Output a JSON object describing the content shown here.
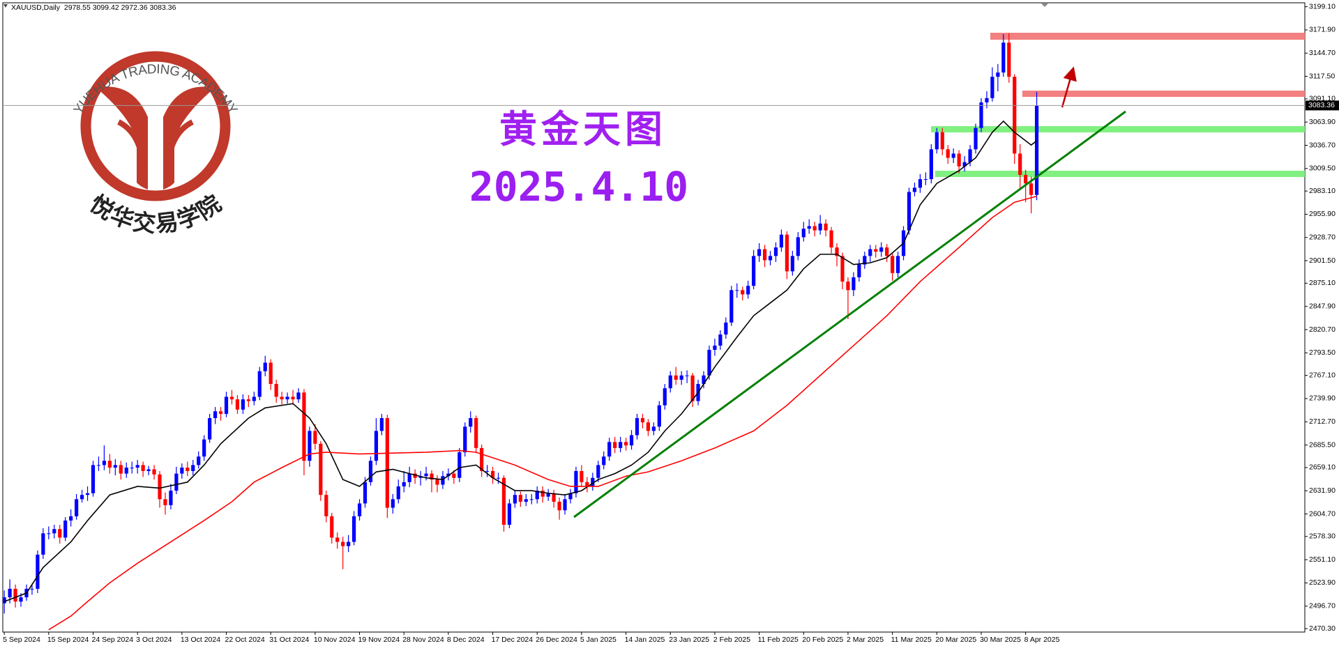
{
  "chart_data": {
    "type": "candlestick",
    "header": "XAUUSD,Daily  2978.55 3099.42 2972.36 3083.36",
    "title": "黄金天图",
    "subtitle": "2025.4.10",
    "logo_text": "YUEHUA TRADING ACADEMY",
    "logo_name": "悦华交易学院",
    "up_color": "#0000ff",
    "down_color": "#ff0000",
    "open": [
      2500,
      2507,
      2517,
      2502,
      2507,
      2517,
      2517,
      2557,
      2582,
      2582,
      2587,
      2577,
      2597,
      2602,
      2622,
      2627,
      2629,
      2662,
      2662,
      2667,
      2659,
      2662,
      2652,
      2659,
      2659,
      2662,
      2655,
      2657,
      2651,
      2622,
      2615,
      2632,
      2652,
      2659,
      2655,
      2662,
      2672,
      2692,
      2717,
      2725,
      2722,
      2742,
      2739,
      2727,
      2739,
      2737,
      2742,
      2772,
      2782,
      2757,
      2742,
      2739,
      2742,
      2739,
      2747,
      2667,
      2702,
      2687,
      2627,
      2602,
      2577,
      2572,
      2567,
      2572,
      2602,
      2617,
      2642,
      2667,
      2702,
      2717,
      2612,
      2622,
      2637,
      2642,
      2652,
      2647,
      2649,
      2652,
      2645,
      2639,
      2649,
      2652,
      2647,
      2677,
      2707,
      2717,
      2682,
      2655,
      2655,
      2647,
      2647,
      2592,
      2617,
      2627,
      2619,
      2622,
      2622,
      2632,
      2625,
      2629,
      2619,
      2609,
      2622,
      2629,
      2655,
      2642,
      2637,
      2647,
      2662,
      2672,
      2689,
      2682,
      2689,
      2685,
      2697,
      2717,
      2712,
      2702,
      2707,
      2732,
      2752,
      2767,
      2762,
      2767,
      2767,
      2737,
      2757,
      2767,
      2797,
      2802,
      2815,
      2829,
      2867,
      2867,
      2862,
      2872,
      2907,
      2915,
      2902,
      2907,
      2917,
      2932,
      2889,
      2907,
      2929,
      2939,
      2942,
      2937,
      2945,
      2937,
      2917,
      2907,
      2877,
      2867,
      2882,
      2897,
      2907,
      2915,
      2912,
      2917,
      2907,
      2887,
      2907,
      2937,
      2982,
      2987,
      2997,
      2997,
      3032,
      3052,
      3032,
      3022,
      3027,
      3012,
      3017,
      3032,
      3057,
      3087,
      3092,
      3117,
      3122,
      3157,
      3117,
      3027,
      3002,
      2992,
      2978.55
    ],
    "high": [
      2515,
      2528,
      2522,
      2512,
      2522,
      2523,
      2562,
      2588,
      2590,
      2592,
      2592,
      2601,
      2610,
      2628,
      2633,
      2637,
      2667,
      2672,
      2685,
      2675,
      2669,
      2667,
      2665,
      2666,
      2668,
      2666,
      2661,
      2662,
      2655,
      2630,
      2640,
      2660,
      2664,
      2666,
      2668,
      2678,
      2697,
      2722,
      2730,
      2730,
      2748,
      2750,
      2744,
      2745,
      2744,
      2748,
      2777,
      2790,
      2786,
      2762,
      2748,
      2747,
      2750,
      2752,
      2751,
      2707,
      2710,
      2690,
      2632,
      2606,
      2583,
      2578,
      2580,
      2608,
      2622,
      2648,
      2672,
      2717,
      2722,
      2721,
      2628,
      2645,
      2655,
      2660,
      2657,
      2655,
      2660,
      2656,
      2650,
      2655,
      2658,
      2656,
      2682,
      2712,
      2725,
      2720,
      2686,
      2662,
      2660,
      2653,
      2650,
      2622,
      2633,
      2631,
      2628,
      2628,
      2637,
      2637,
      2634,
      2633,
      2624,
      2628,
      2634,
      2660,
      2662,
      2648,
      2653,
      2667,
      2678,
      2694,
      2695,
      2695,
      2694,
      2703,
      2722,
      2722,
      2716,
      2712,
      2737,
      2757,
      2772,
      2777,
      2772,
      2773,
      2770,
      2762,
      2772,
      2802,
      2810,
      2820,
      2835,
      2872,
      2875,
      2871,
      2878,
      2914,
      2922,
      2920,
      2913,
      2923,
      2938,
      2936,
      2913,
      2935,
      2947,
      2950,
      2947,
      2955,
      2950,
      2941,
      2922,
      2911,
      2882,
      2888,
      2903,
      2912,
      2920,
      2920,
      2923,
      2921,
      2911,
      2912,
      2942,
      2987,
      2993,
      3003,
      3005,
      3038,
      3057,
      3057,
      3037,
      3033,
      3031,
      3024,
      3037,
      3062,
      3092,
      3100,
      3128,
      3132,
      3167,
      3168,
      3120,
      3038,
      3008,
      3000,
      3099.42
    ],
    "low": [
      2488,
      2500,
      2495,
      2496,
      2503,
      2510,
      2512,
      2552,
      2575,
      2576,
      2570,
      2573,
      2590,
      2598,
      2618,
      2620,
      2625,
      2655,
      2656,
      2652,
      2650,
      2645,
      2647,
      2652,
      2652,
      2648,
      2650,
      2645,
      2612,
      2604,
      2610,
      2628,
      2646,
      2649,
      2650,
      2658,
      2667,
      2688,
      2710,
      2714,
      2718,
      2733,
      2722,
      2722,
      2730,
      2732,
      2738,
      2766,
      2750,
      2735,
      2733,
      2734,
      2733,
      2735,
      2650,
      2660,
      2680,
      2620,
      2595,
      2570,
      2564,
      2540,
      2560,
      2568,
      2597,
      2612,
      2638,
      2662,
      2697,
      2600,
      2605,
      2617,
      2630,
      2636,
      2640,
      2638,
      2644,
      2630,
      2630,
      2634,
      2644,
      2640,
      2642,
      2672,
      2700,
      2676,
      2648,
      2648,
      2640,
      2640,
      2584,
      2588,
      2612,
      2613,
      2614,
      2616,
      2617,
      2618,
      2620,
      2612,
      2598,
      2604,
      2617,
      2624,
      2637,
      2630,
      2632,
      2642,
      2657,
      2667,
      2676,
      2677,
      2679,
      2680,
      2692,
      2705,
      2696,
      2697,
      2702,
      2727,
      2747,
      2756,
      2756,
      2758,
      2730,
      2732,
      2752,
      2762,
      2790,
      2797,
      2810,
      2825,
      2858,
      2855,
      2857,
      2868,
      2900,
      2894,
      2896,
      2900,
      2912,
      2880,
      2884,
      2902,
      2924,
      2933,
      2930,
      2932,
      2930,
      2910,
      2895,
      2868,
      2833,
      2860,
      2877,
      2892,
      2900,
      2905,
      2906,
      2900,
      2878,
      2882,
      2902,
      2932,
      2977,
      2981,
      2990,
      2992,
      3027,
      3025,
      3015,
      3016,
      3004,
      3006,
      3012,
      3027,
      3052,
      3080,
      3088,
      3100,
      3117,
      3110,
      3015,
      2985,
      2970,
      2957,
      2972.36
    ],
    "close": [
      2507,
      2517,
      2502,
      2507,
      2517,
      2517,
      2557,
      2582,
      2582,
      2587,
      2577,
      2597,
      2602,
      2622,
      2627,
      2629,
      2662,
      2662,
      2667,
      2659,
      2662,
      2652,
      2659,
      2659,
      2662,
      2655,
      2657,
      2651,
      2622,
      2615,
      2632,
      2652,
      2659,
      2655,
      2662,
      2672,
      2692,
      2717,
      2725,
      2722,
      2742,
      2739,
      2727,
      2739,
      2737,
      2742,
      2772,
      2782,
      2757,
      2742,
      2739,
      2742,
      2739,
      2747,
      2667,
      2702,
      2687,
      2627,
      2602,
      2577,
      2572,
      2567,
      2572,
      2602,
      2617,
      2642,
      2667,
      2702,
      2717,
      2612,
      2622,
      2637,
      2642,
      2652,
      2647,
      2649,
      2652,
      2645,
      2639,
      2649,
      2652,
      2647,
      2677,
      2707,
      2717,
      2682,
      2655,
      2655,
      2647,
      2647,
      2592,
      2617,
      2627,
      2619,
      2622,
      2622,
      2632,
      2625,
      2629,
      2619,
      2609,
      2622,
      2629,
      2655,
      2642,
      2637,
      2647,
      2662,
      2672,
      2689,
      2682,
      2689,
      2685,
      2697,
      2717,
      2712,
      2702,
      2707,
      2732,
      2752,
      2767,
      2762,
      2767,
      2767,
      2737,
      2757,
      2767,
      2797,
      2802,
      2815,
      2829,
      2867,
      2867,
      2862,
      2872,
      2907,
      2915,
      2902,
      2907,
      2917,
      2932,
      2889,
      2907,
      2929,
      2939,
      2942,
      2937,
      2945,
      2937,
      2917,
      2907,
      2877,
      2867,
      2882,
      2897,
      2907,
      2915,
      2912,
      2917,
      2907,
      2887,
      2907,
      2937,
      2982,
      2987,
      2997,
      2997,
      3032,
      3052,
      3032,
      3022,
      3027,
      3012,
      3017,
      3032,
      3057,
      3087,
      3092,
      3117,
      3122,
      3157,
      3117,
      3027,
      3002,
      2992,
      2978.55,
      3083.36
    ],
    "series": [
      {
        "type": "line",
        "color": "#000000",
        "x": [
          0,
          4,
          7,
          12,
          15,
          19,
          24,
          28,
          33,
          36,
          39,
          44,
          47,
          52,
          55,
          58,
          61,
          64,
          67,
          70,
          73,
          76,
          79,
          82,
          85,
          88,
          92,
          95,
          98,
          101,
          104,
          107,
          110,
          113,
          116,
          119,
          122,
          125,
          128,
          132,
          135,
          138,
          141,
          144,
          147,
          150,
          153,
          156,
          159,
          162,
          165,
          168,
          172,
          175,
          178,
          180,
          182,
          185,
          186
        ],
        "values": [
          2502,
          2512,
          2542,
          2572,
          2597,
          2627,
          2637,
          2635,
          2642,
          2662,
          2687,
          2717,
          2729,
          2734,
          2717,
          2687,
          2645,
          2637,
          2654,
          2657,
          2652,
          2647,
          2645,
          2659,
          2662,
          2647,
          2632,
          2632,
          2629,
          2627,
          2632,
          2645,
          2652,
          2662,
          2677,
          2702,
          2722,
          2747,
          2777,
          2812,
          2837,
          2852,
          2867,
          2892,
          2909,
          2909,
          2897,
          2899,
          2905,
          2922,
          2967,
          2992,
          3007,
          3022,
          3052,
          3065,
          3052,
          3037,
          3042
        ]
      },
      {
        "type": "line",
        "color": "#ff0000",
        "x": [
          8,
          12,
          15,
          19,
          24,
          30,
          36,
          41,
          45,
          50,
          55,
          58,
          64,
          70,
          76,
          82,
          85,
          92,
          98,
          102,
          107,
          112,
          116,
          122,
          128,
          135,
          141,
          147,
          153,
          159,
          165,
          172,
          178,
          182,
          186
        ],
        "values": [
          2469,
          2485,
          2502,
          2524,
          2547,
          2572,
          2597,
          2619,
          2642,
          2659,
          2675,
          2677,
          2675,
          2676,
          2677,
          2679,
          2677,
          2662,
          2645,
          2637,
          2637,
          2649,
          2654,
          2667,
          2682,
          2702,
          2732,
          2767,
          2802,
          2837,
          2877,
          2917,
          2952,
          2970,
          2977
        ]
      }
    ],
    "last_price": 3083.36,
    "xlim": [
      -0.27,
      234.3
    ],
    "xticks": [
      {
        "value": 0,
        "label": "5 Sep 2024"
      },
      {
        "value": 8,
        "label": "15 Sep 2024"
      },
      {
        "value": 16,
        "label": "24 Sep 2024"
      },
      {
        "value": 24,
        "label": "3 Oct 2024"
      },
      {
        "value": 32,
        "label": "13 Oct 2024"
      },
      {
        "value": 40,
        "label": "22 Oct 2024"
      },
      {
        "value": 48,
        "label": "31 Oct 2024"
      },
      {
        "value": 56,
        "label": "10 Nov 2024"
      },
      {
        "value": 64,
        "label": "19 Nov 2024"
      },
      {
        "value": 72,
        "label": "28 Nov 2024"
      },
      {
        "value": 80,
        "label": "8 Dec 2024"
      },
      {
        "value": 88,
        "label": "17 Dec 2024"
      },
      {
        "value": 96,
        "label": "26 Dec 2024"
      },
      {
        "value": 104,
        "label": "5 Jan 2025"
      },
      {
        "value": 112,
        "label": "14 Jan 2025"
      },
      {
        "value": 120,
        "label": "23 Jan 2025"
      },
      {
        "value": 128,
        "label": "2 Feb 2025"
      },
      {
        "value": 136,
        "label": "11 Feb 2025"
      },
      {
        "value": 144,
        "label": "20 Feb 2025"
      },
      {
        "value": 152,
        "label": "2 Mar 2025"
      },
      {
        "value": 160,
        "label": "11 Mar 2025"
      },
      {
        "value": 168,
        "label": "20 Mar 2025"
      },
      {
        "value": 176,
        "label": "30 Mar 2025"
      },
      {
        "value": 184,
        "label": "8 Apr 2025"
      }
    ],
    "ylim": [
      2466.3,
      3203.7
    ],
    "yticks": [
      {
        "value": 3199.1,
        "label": "3199.10"
      },
      {
        "value": 3171.9,
        "label": "3171.90"
      },
      {
        "value": 3144.7,
        "label": "3144.70"
      },
      {
        "value": 3117.5,
        "label": "3117.50"
      },
      {
        "value": 3091.1,
        "label": "3091.10"
      },
      {
        "value": 3063.9,
        "label": "3063.90"
      },
      {
        "value": 3036.7,
        "label": "3036.70"
      },
      {
        "value": 3009.5,
        "label": "3009.50"
      },
      {
        "value": 2983.1,
        "label": "2983.10"
      },
      {
        "value": 2955.9,
        "label": "2955.90"
      },
      {
        "value": 2928.7,
        "label": "2928.70"
      },
      {
        "value": 2901.5,
        "label": "2901.50"
      },
      {
        "value": 2875.1,
        "label": "2875.10"
      },
      {
        "value": 2847.9,
        "label": "2847.90"
      },
      {
        "value": 2820.7,
        "label": "2820.70"
      },
      {
        "value": 2793.5,
        "label": "2793.50"
      },
      {
        "value": 2767.1,
        "label": "2767.10"
      },
      {
        "value": 2739.9,
        "label": "2739.90"
      },
      {
        "value": 2712.7,
        "label": "2712.70"
      },
      {
        "value": 2685.5,
        "label": "2685.50"
      },
      {
        "value": 2659.1,
        "label": "2659.10"
      },
      {
        "value": 2631.9,
        "label": "2631.90"
      },
      {
        "value": 2604.7,
        "label": "2604.70"
      },
      {
        "value": 2578.3,
        "label": "2578.30"
      },
      {
        "value": 2551.1,
        "label": "2551.10"
      },
      {
        "value": 2523.9,
        "label": "2523.90"
      },
      {
        "value": 2496.7,
        "label": "2496.70"
      },
      {
        "value": 2470.3,
        "label": "2470.30"
      }
    ]
  }
}
